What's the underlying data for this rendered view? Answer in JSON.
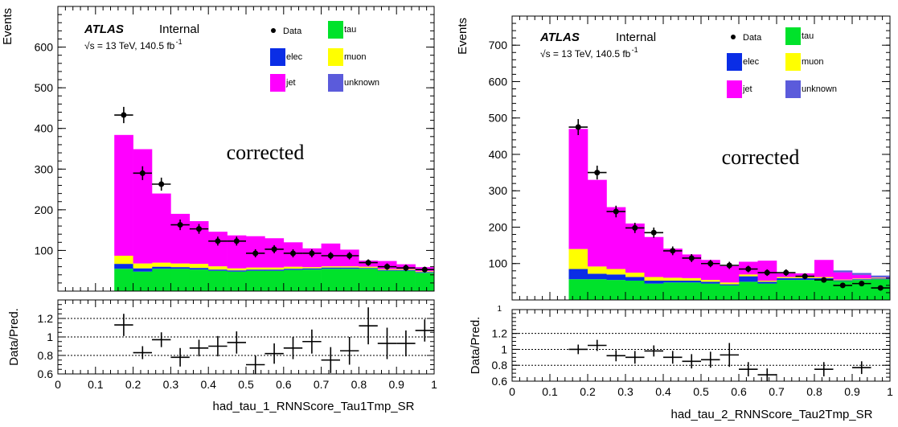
{
  "chart_data": [
    {
      "type": "bar",
      "stacked": true,
      "top_ylabel": "Events",
      "bottom_ylabel": "Data/Pred.",
      "xlabel": "had_tau_1_RNNScore_Tau1Tmp_SR",
      "experiment_label": "ATLAS",
      "status_label": "Internal",
      "energy_label": "√s = 13 TeV, 140.5 fb",
      "energy_sup": "-1",
      "annotation": "corrected",
      "xlim": [
        0,
        1
      ],
      "ylim": [
        0,
        700
      ],
      "ratio_ylim": [
        0.6,
        1.4
      ],
      "x_ticks": [
        "0",
        "0.1",
        "0.2",
        "0.3",
        "0.4",
        "0.5",
        "0.6",
        "0.7",
        "0.8",
        "0.9",
        "1"
      ],
      "y_ticks": [
        100,
        200,
        300,
        400,
        500,
        600
      ],
      "ratio_ticks": [
        "0.6",
        "0.8",
        "1",
        "1.2"
      ],
      "ratio_gridlines": [
        0.8,
        1.0,
        1.2
      ],
      "bin_edges": [
        0.15,
        0.2,
        0.25,
        0.3,
        0.35,
        0.4,
        0.45,
        0.5,
        0.55,
        0.6,
        0.65,
        0.7,
        0.75,
        0.8,
        0.85,
        0.9,
        0.95,
        1.0
      ],
      "legend": [
        {
          "key": "data",
          "label": "Data",
          "color": "#000000"
        },
        {
          "key": "tau",
          "label": "tau",
          "color": "#00e22b"
        },
        {
          "key": "elec",
          "label": "elec",
          "color": "#0a2de6"
        },
        {
          "key": "muon",
          "label": "muon",
          "color": "#ffff00"
        },
        {
          "key": "jet",
          "label": "jet",
          "color": "#ff00ff"
        },
        {
          "key": "unknown",
          "label": "unknown",
          "color": "#5b5bdb"
        }
      ],
      "series": [
        {
          "key": "tau",
          "name": "tau",
          "color": "#00e22b",
          "values": [
            55,
            48,
            55,
            55,
            53,
            50,
            48,
            50,
            50,
            52,
            53,
            55,
            55,
            55,
            50,
            50,
            45
          ]
        },
        {
          "key": "elec",
          "name": "elec",
          "color": "#0a2de6",
          "values": [
            12,
            8,
            5,
            4,
            4,
            3,
            3,
            3,
            3,
            3,
            3,
            3,
            3,
            2,
            2,
            2,
            2
          ]
        },
        {
          "key": "muon",
          "name": "muon",
          "color": "#ffff00",
          "values": [
            20,
            12,
            10,
            9,
            10,
            8,
            5,
            5,
            5,
            5,
            3,
            3,
            3,
            3,
            2,
            2,
            2
          ]
        },
        {
          "key": "jet",
          "name": "jet",
          "color": "#ff00ff",
          "values": [
            297,
            281,
            170,
            122,
            105,
            85,
            81,
            77,
            72,
            60,
            46,
            56,
            41,
            15,
            20,
            12,
            10
          ]
        },
        {
          "key": "unknown",
          "name": "unknown",
          "color": "#5b5bdb",
          "values": [
            0,
            0,
            0,
            0,
            0,
            0,
            0,
            0,
            0,
            0,
            0,
            0,
            0,
            0,
            0,
            0,
            0
          ]
        }
      ],
      "data_x": [
        0.175,
        0.225,
        0.275,
        0.325,
        0.375,
        0.425,
        0.475,
        0.525,
        0.575,
        0.625,
        0.675,
        0.725,
        0.775,
        0.825,
        0.875,
        0.925,
        0.975
      ],
      "data_y": [
        433,
        290,
        263,
        163,
        153,
        123,
        123,
        93,
        103,
        93,
        93,
        87,
        87,
        70,
        60,
        57,
        53
      ],
      "data_err": [
        20,
        17,
        16,
        13,
        12,
        11,
        11,
        10,
        10,
        10,
        10,
        9,
        9,
        8,
        8,
        8,
        7
      ],
      "ratio_x": [
        0.175,
        0.225,
        0.275,
        0.325,
        0.375,
        0.425,
        0.475,
        0.525,
        0.575,
        0.625,
        0.675,
        0.725,
        0.775,
        0.825,
        0.875,
        0.925,
        0.975
      ],
      "ratio_y": [
        1.13,
        0.83,
        0.97,
        0.78,
        0.88,
        0.9,
        0.94,
        0.7,
        0.82,
        0.88,
        0.95,
        0.75,
        0.85,
        1.12,
        0.93,
        0.93,
        1.07
      ],
      "ratio_err": [
        0.12,
        0.07,
        0.08,
        0.1,
        0.09,
        0.11,
        0.12,
        0.1,
        0.11,
        0.12,
        0.13,
        0.14,
        0.15,
        0.2,
        0.17,
        0.14,
        0.12
      ]
    },
    {
      "type": "bar",
      "stacked": true,
      "top_ylabel": "Events",
      "bottom_ylabel": "Data/Pred.",
      "xlabel": "had_tau_2_RNNScore_Tau2Tmp_SR",
      "experiment_label": "ATLAS",
      "status_label": "Internal",
      "energy_label": "√s = 13 TeV, 140.5 fb",
      "energy_sup": "-1",
      "annotation": "corrected",
      "xlim": [
        0,
        1
      ],
      "ylim": [
        0,
        780
      ],
      "ratio_ylim": [
        0.6,
        1.5
      ],
      "x_ticks": [
        "0",
        "0.1",
        "0.2",
        "0.3",
        "0.4",
        "0.5",
        "0.6",
        "0.7",
        "0.8",
        "0.9",
        "1"
      ],
      "y_ticks": [
        100,
        200,
        300,
        400,
        500,
        600,
        700
      ],
      "ratio_ticks": [
        "0.6",
        "0.8",
        "1",
        "1.2"
      ],
      "ratio_gridlines": [
        0.8,
        1.0,
        1.2
      ],
      "top_ratio_tick": "1",
      "bin_edges": [
        0.15,
        0.2,
        0.25,
        0.3,
        0.35,
        0.4,
        0.45,
        0.5,
        0.55,
        0.6,
        0.65,
        0.7,
        0.75,
        0.8,
        0.85,
        0.9,
        0.95,
        1.0
      ],
      "legend": [
        {
          "key": "data",
          "label": "Data",
          "color": "#000000"
        },
        {
          "key": "tau",
          "label": "tau",
          "color": "#00e22b"
        },
        {
          "key": "elec",
          "label": "elec",
          "color": "#0a2de6"
        },
        {
          "key": "muon",
          "label": "muon",
          "color": "#ffff00"
        },
        {
          "key": "jet",
          "label": "jet",
          "color": "#ff00ff"
        },
        {
          "key": "unknown",
          "label": "unknown",
          "color": "#5b5bdb"
        }
      ],
      "series": [
        {
          "key": "tau",
          "name": "tau",
          "color": "#00e22b",
          "values": [
            57,
            57,
            55,
            53,
            45,
            48,
            48,
            45,
            40,
            50,
            45,
            55,
            55,
            55,
            52,
            55,
            57
          ]
        },
        {
          "key": "elec",
          "name": "elec",
          "color": "#0a2de6",
          "values": [
            28,
            15,
            15,
            10,
            8,
            5,
            5,
            5,
            3,
            15,
            5,
            5,
            5,
            5,
            2,
            2,
            2
          ]
        },
        {
          "key": "muon",
          "name": "muon",
          "color": "#ffff00",
          "values": [
            55,
            20,
            15,
            12,
            10,
            8,
            7,
            5,
            5,
            5,
            3,
            3,
            3,
            3,
            2,
            2,
            2
          ]
        },
        {
          "key": "jet",
          "name": "jet",
          "color": "#ff00ff",
          "values": [
            330,
            238,
            170,
            135,
            110,
            80,
            65,
            55,
            45,
            35,
            55,
            10,
            10,
            47,
            20,
            10,
            1
          ]
        },
        {
          "key": "unknown",
          "name": "unknown",
          "color": "#5b5bdb",
          "values": [
            0,
            0,
            0,
            0,
            0,
            0,
            0,
            0,
            0,
            0,
            0,
            0,
            0,
            0,
            5,
            5,
            5
          ]
        }
      ],
      "data_x": [
        0.175,
        0.225,
        0.275,
        0.325,
        0.375,
        0.425,
        0.475,
        0.525,
        0.575,
        0.625,
        0.675,
        0.725,
        0.775,
        0.825,
        0.875,
        0.925,
        0.975
      ],
      "data_y": [
        475,
        350,
        243,
        198,
        185,
        135,
        115,
        100,
        95,
        85,
        75,
        75,
        65,
        55,
        40,
        45,
        33
      ],
      "data_err": [
        22,
        19,
        16,
        14,
        14,
        12,
        11,
        10,
        10,
        9,
        9,
        9,
        8,
        7,
        6,
        7,
        6
      ],
      "ratio_x": [
        0.175,
        0.225,
        0.275,
        0.325,
        0.375,
        0.425,
        0.475,
        0.525,
        0.575,
        0.625,
        0.675,
        0.825,
        0.925
      ],
      "ratio_y": [
        1.0,
        1.05,
        0.92,
        0.9,
        0.98,
        0.9,
        0.85,
        0.87,
        0.93,
        0.75,
        0.68,
        0.75,
        0.77
      ],
      "ratio_err": [
        0.06,
        0.07,
        0.07,
        0.08,
        0.07,
        0.08,
        0.09,
        0.1,
        0.15,
        0.09,
        0.08,
        0.09,
        0.08
      ]
    }
  ]
}
